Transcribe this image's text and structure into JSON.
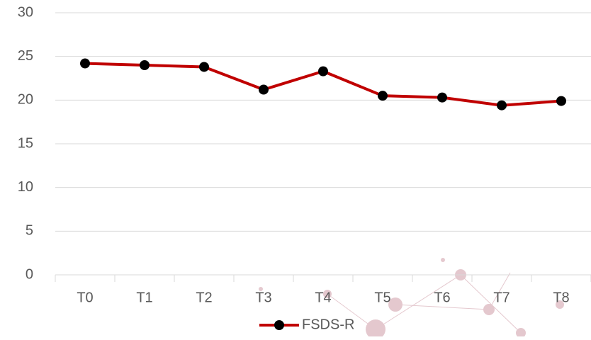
{
  "chart_data": {
    "type": "line",
    "categories": [
      "T0",
      "T1",
      "T2",
      "T3",
      "T4",
      "T5",
      "T6",
      "T7",
      "T8"
    ],
    "series": [
      {
        "name": "FSDS-R",
        "color": "#c00000",
        "marker_color": "#000000",
        "values": [
          24.2,
          24.0,
          23.8,
          21.2,
          23.3,
          20.5,
          20.3,
          19.4,
          19.9
        ]
      }
    ],
    "ylim": [
      0,
      30
    ],
    "yticks": [
      0,
      5,
      10,
      15,
      20,
      25,
      30
    ],
    "grid": true,
    "legend": "bottom"
  }
}
